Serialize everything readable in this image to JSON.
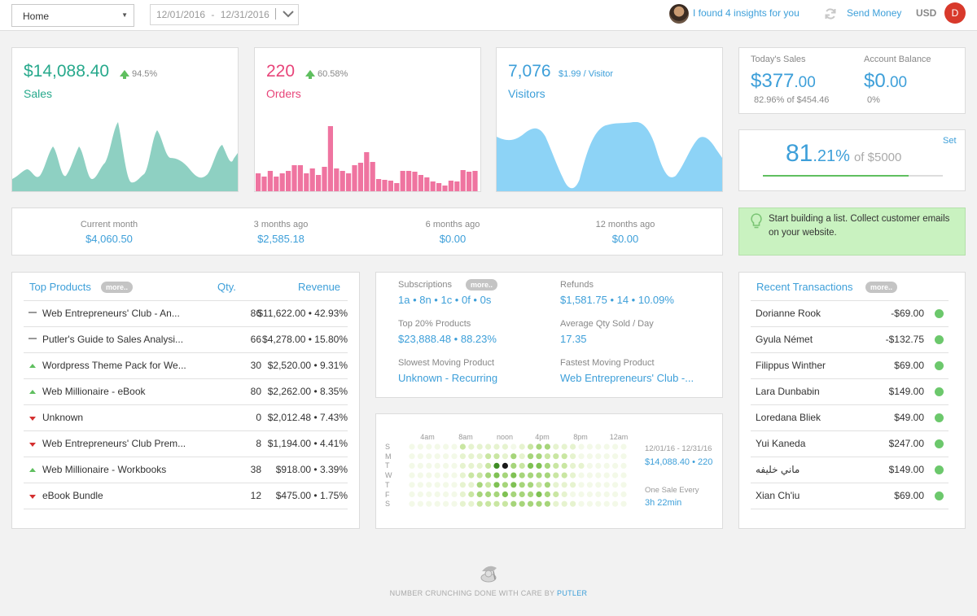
{
  "topbar": {
    "page_select": "Home",
    "date_from": "12/01/2016",
    "date_to": "12/31/2016",
    "insights": "I found 4 insights for you",
    "send_money": "Send Money",
    "currency": "USD",
    "user_initial": "D"
  },
  "metrics": {
    "sales": {
      "value": "$14,088.40",
      "change": "94.5%",
      "label": "Sales",
      "color": "#27a98c"
    },
    "orders": {
      "value": "220",
      "change": "60.58%",
      "label": "Orders",
      "color": "#e8457a"
    },
    "visitors": {
      "value": "7,076",
      "per": "$1.99 / Visitor",
      "label": "Visitors",
      "color": "#3d9fd9"
    }
  },
  "today": {
    "label": "Today's Sales",
    "int": "$377",
    "dec": ".00",
    "sub": "82.96% of $454.46"
  },
  "balance": {
    "label": "Account Balance",
    "int": "$0",
    "dec": ".00",
    "sub": "0%"
  },
  "goal": {
    "int": "81",
    "dec": ".21%",
    "of": "of $5000",
    "set": "Set",
    "progress": 0.8121
  },
  "tip": {
    "text": "Start building a list. Collect customer emails on your website."
  },
  "periods": [
    {
      "label": "Current month",
      "value": "$4,060.50"
    },
    {
      "label": "3 months ago",
      "value": "$2,585.18"
    },
    {
      "label": "6 months ago",
      "value": "$0.00"
    },
    {
      "label": "12 months ago",
      "value": "$0.00"
    }
  ],
  "top_products": {
    "title": "Top Products",
    "more": "more..",
    "col_qty": "Qty.",
    "col_rev": "Revenue",
    "rows": [
      {
        "trend": "flat",
        "name": "Web Entrepreneurs' Club - An...",
        "qty": "86",
        "rev": "$11,622.00 • 42.93%"
      },
      {
        "trend": "flat",
        "name": "Putler's Guide to Sales Analysi...",
        "qty": "66",
        "rev": "$4,278.00 • 15.80%"
      },
      {
        "trend": "up",
        "name": "Wordpress Theme Pack for We...",
        "qty": "30",
        "rev": "$2,520.00 • 9.31%"
      },
      {
        "trend": "up",
        "name": "Web Millionaire - eBook",
        "qty": "80",
        "rev": "$2,262.00 • 8.35%"
      },
      {
        "trend": "down",
        "name": "Unknown",
        "qty": "0",
        "rev": "$2,012.48 • 7.43%"
      },
      {
        "trend": "down",
        "name": "Web Entrepreneurs' Club Prem...",
        "qty": "8",
        "rev": "$1,194.00 • 4.41%"
      },
      {
        "trend": "up",
        "name": "Web Millionaire - Workbooks",
        "qty": "38",
        "rev": "$918.00 • 3.39%"
      },
      {
        "trend": "down",
        "name": "eBook Bundle",
        "qty": "12",
        "rev": "$475.00 • 1.75%"
      }
    ]
  },
  "stats": {
    "subscriptions_label": "Subscriptions",
    "subscriptions_more": "more..",
    "subscriptions_value": "1a • 8n • 1c • 0f • 0s",
    "refunds_label": "Refunds",
    "refunds_value": "$1,581.75 • 14 • 10.09%",
    "top20_label": "Top 20% Products",
    "top20_value": "$23,888.48 • 88.23%",
    "avgqty_label": "Average Qty Sold / Day",
    "avgqty_value": "17.35",
    "slowest_label": "Slowest Moving Product",
    "slowest_value": "Unknown - Recurring",
    "fastest_label": "Fastest Moving Product",
    "fastest_value": "Web Entrepreneurs' Club -..."
  },
  "heatmap": {
    "hours": [
      "4am",
      "8am",
      "noon",
      "4pm",
      "8pm",
      "12am"
    ],
    "days": [
      "S",
      "M",
      "T",
      "W",
      "T",
      "F",
      "S"
    ],
    "range": "12/01/16 - 12/31/16",
    "range_value": "$14,088.40 • 220",
    "one_sale_label": "One Sale Every",
    "one_sale_value": "3h 22min"
  },
  "transactions": {
    "title": "Recent Transactions",
    "more": "more..",
    "rows": [
      {
        "name": "Dorianne Rook",
        "amount": "-$69.00"
      },
      {
        "name": "Gyula Német",
        "amount": "-$132.75"
      },
      {
        "name": "Filippus Winther",
        "amount": "$69.00"
      },
      {
        "name": "Lara Dunbabin",
        "amount": "$149.00"
      },
      {
        "name": "Loredana Bliek",
        "amount": "$49.00"
      },
      {
        "name": "Yui Kaneda",
        "amount": "$247.00"
      },
      {
        "name": "ماني خليفه",
        "amount": "$149.00"
      },
      {
        "name": "Xian Ch'iu",
        "amount": "$69.00"
      }
    ]
  },
  "footer": {
    "text": "NUMBER CRUNCHING DONE WITH CARE BY ",
    "brand": "PUTLER"
  }
}
